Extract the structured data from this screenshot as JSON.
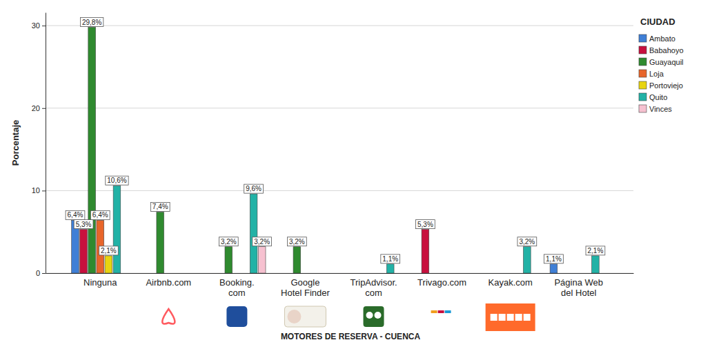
{
  "chart_data": {
    "type": "bar",
    "x_label": "MOTORES DE RESERVA - CUENCA",
    "y_label": "Porcentaje",
    "legend_title": "CIUDAD",
    "legend": "top-right",
    "grid": true,
    "data_labels": true,
    "categories": [
      "Ninguna",
      "Airbnb.com",
      "Booking.\ncom",
      "Google\nHotel Finder",
      "TripAdvisor.\ncom",
      "Trivago.com",
      "Kayak.com",
      "Página Web\ndel Hotel"
    ],
    "ylim": [
      0,
      31.6
    ],
    "yticks": [
      0,
      10,
      20,
      30
    ],
    "series": [
      {
        "name": "Ambato",
        "color": "#3f7fd6",
        "values": [
          6.4,
          null,
          null,
          null,
          null,
          null,
          null,
          1.1
        ],
        "value_labels": [
          "6,4%",
          null,
          null,
          null,
          null,
          null,
          null,
          "1,1%"
        ]
      },
      {
        "name": "Babahoyo",
        "color": "#c8103e",
        "values": [
          5.3,
          null,
          null,
          null,
          null,
          5.3,
          null,
          null
        ],
        "value_labels": [
          "5,3%",
          null,
          null,
          null,
          null,
          "5,3%",
          null,
          null
        ]
      },
      {
        "name": "Guayaquil",
        "color": "#2f8a2f",
        "values": [
          29.8,
          7.4,
          3.2,
          3.2,
          null,
          null,
          null,
          null
        ],
        "value_labels": [
          "29,8%",
          "7,4%",
          "3,2%",
          "3,2%",
          null,
          null,
          null,
          null
        ]
      },
      {
        "name": "Loja",
        "color": "#e8652a",
        "values": [
          6.4,
          null,
          null,
          null,
          null,
          null,
          null,
          null
        ],
        "value_labels": [
          "6,4%",
          null,
          null,
          null,
          null,
          null,
          null,
          null
        ]
      },
      {
        "name": "Portoviejo",
        "color": "#e8d40f",
        "values": [
          2.1,
          null,
          null,
          null,
          null,
          null,
          null,
          null
        ],
        "value_labels": [
          "2,1%",
          null,
          null,
          null,
          null,
          null,
          null,
          null
        ]
      },
      {
        "name": "Quito",
        "color": "#22b2a6",
        "values": [
          10.6,
          null,
          9.6,
          null,
          1.1,
          null,
          3.2,
          2.1
        ],
        "value_labels": [
          "10,6%",
          null,
          "9,6%",
          null,
          "1,1%",
          null,
          "3,2%",
          "2,1%"
        ]
      },
      {
        "name": "Vinces",
        "color": "#f6c1d0",
        "values": [
          null,
          null,
          3.2,
          null,
          null,
          null,
          null,
          null
        ],
        "value_labels": [
          null,
          null,
          "3,2%",
          null,
          null,
          null,
          null,
          null
        ]
      }
    ]
  }
}
